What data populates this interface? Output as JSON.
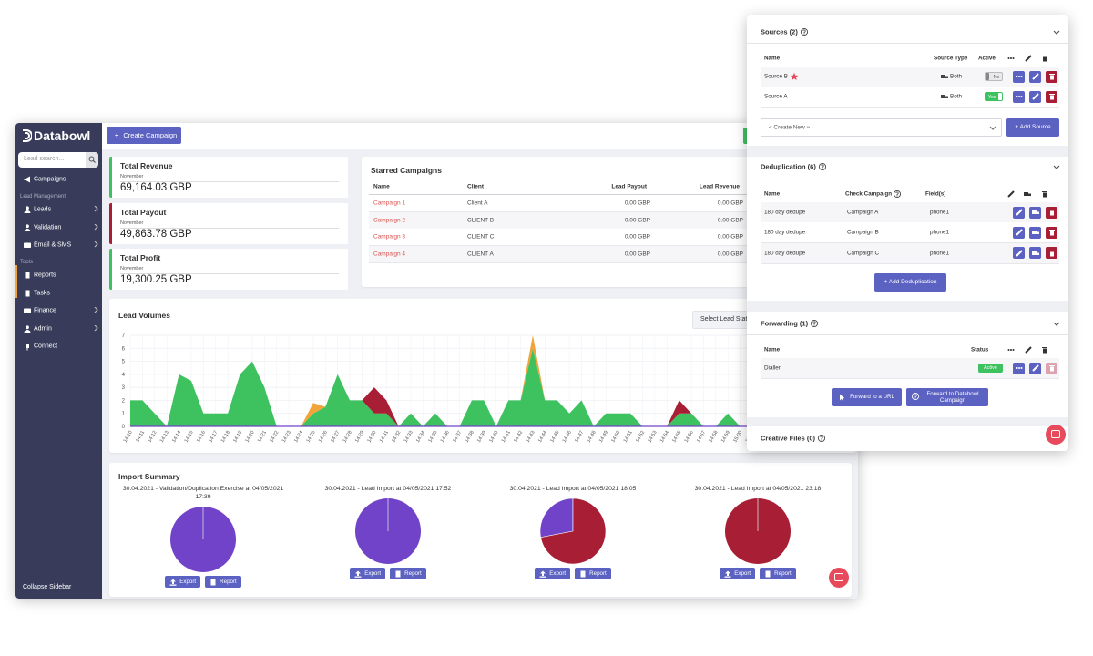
{
  "sidebar": {
    "logo": "Databowl",
    "search_placeholder": "Lead search...",
    "top_item": "Campaigns",
    "groups": [
      {
        "heading": "Lead Management",
        "items": [
          "Leads",
          "Validation",
          "Email & SMS"
        ]
      },
      {
        "heading": "Tools",
        "items": [
          "Reports",
          "Tasks",
          "Finance",
          "Admin",
          "Connect"
        ]
      }
    ],
    "collapse": "Collapse Sidebar"
  },
  "topbar": {
    "create_button": "Create Campaign"
  },
  "cards": [
    {
      "title": "Total Revenue",
      "period": "November",
      "value": "69,164.03 GBP"
    },
    {
      "title": "Total Payout",
      "period": "November",
      "value": "49,863.78 GBP"
    },
    {
      "title": "Total Profit",
      "period": "November",
      "value": "19,300.25 GBP"
    }
  ],
  "starred_campaigns": {
    "title": "Starred Campaigns",
    "headers": [
      "Name",
      "Client",
      "Lead Payout",
      "Lead Revenue"
    ],
    "rows": [
      [
        "Campaign 1",
        "Client A",
        "0.00 GBP",
        "0.00 GBP"
      ],
      [
        "Campaign 2",
        "CLIENT B",
        "0.00 GBP",
        "0.00 GBP"
      ],
      [
        "Campaign 3",
        "CLIENT C",
        "0.00 GBP",
        "0.00 GBP"
      ],
      [
        "Campaign 4",
        "CLIENT A",
        "0.00 GBP",
        "0.00 GBP"
      ]
    ]
  },
  "lead_volumes_filter": "Select Lead Status",
  "import_summary": {
    "title": "Import Summary",
    "buttons": [
      "Export",
      "Report"
    ]
  },
  "chart_data": [
    {
      "type": "area",
      "title": "Lead Volumes",
      "categories": [
        "14:10",
        "14:11",
        "14:12",
        "14:13",
        "14:14",
        "14:15",
        "14:16",
        "14:17",
        "14:18",
        "14:19",
        "14:20",
        "14:21",
        "14:22",
        "14:23",
        "14:24",
        "14:25",
        "14:26",
        "14:27",
        "14:28",
        "14:29",
        "14:30",
        "14:31",
        "14:32",
        "14:33",
        "14:34",
        "14:35",
        "14:36",
        "14:37",
        "14:38",
        "14:39",
        "14:40",
        "14:41",
        "14:42",
        "14:43",
        "14:44",
        "14:45",
        "14:46",
        "14:47",
        "14:48",
        "14:49",
        "14:50",
        "14:51",
        "14:52",
        "14:53",
        "14:54",
        "14:55",
        "14:56",
        "14:57",
        "14:58",
        "14:59",
        "15:00",
        "15:01"
      ],
      "series": [
        {
          "color": "#3ec15f",
          "values": [
            2,
            2,
            1,
            0,
            4,
            3.5,
            1,
            1,
            1,
            4,
            5,
            3,
            0,
            0,
            0,
            1,
            1.5,
            4,
            2,
            2,
            1,
            1,
            0,
            1,
            0,
            1,
            0,
            0,
            2,
            2,
            0,
            2,
            2,
            6,
            2,
            2,
            1,
            2,
            0,
            1,
            1,
            1,
            0,
            0,
            0,
            1,
            1,
            0,
            0,
            1,
            0,
            0
          ]
        },
        {
          "color": "#f2a33a",
          "values": [
            0,
            0,
            0,
            0,
            0,
            0,
            0,
            0,
            0,
            0,
            0,
            0,
            0,
            0,
            0,
            0.8,
            0,
            0,
            0,
            0,
            0,
            0,
            0,
            0,
            0,
            0,
            0,
            0,
            0,
            0,
            0,
            0,
            0,
            1,
            0,
            0,
            0,
            0,
            0,
            0,
            0,
            0,
            0,
            0,
            0,
            0,
            0,
            0,
            0,
            0,
            0,
            0
          ]
        },
        {
          "color": "#a81e35",
          "values": [
            0,
            0,
            0,
            0,
            0,
            0,
            0,
            0,
            0,
            0,
            0,
            0,
            0,
            0,
            0,
            0,
            0,
            0,
            0,
            0,
            2,
            1,
            0,
            0,
            0,
            0,
            0,
            0,
            0,
            0,
            0,
            0,
            0,
            0,
            0,
            0,
            0,
            0,
            0,
            0,
            0,
            0,
            0,
            0,
            0,
            1,
            0,
            0,
            0,
            0,
            0,
            0
          ]
        }
      ],
      "stacked": true,
      "ylim": [
        0,
        7
      ],
      "yticks": [
        0,
        1,
        2,
        3,
        4,
        5,
        6,
        7
      ],
      "grid": true
    },
    {
      "type": "pie",
      "title": "30.04.2021 - Validation/Duplication Exercise at 04/05/2021 17:39",
      "values": [
        100,
        0
      ],
      "colors": [
        "#7043c9",
        "#a81e35"
      ]
    },
    {
      "type": "pie",
      "title": "30.04.2021 - Lead Import at 04/05/2021 17:52",
      "values": [
        100,
        0
      ],
      "colors": [
        "#7043c9",
        "#a81e35"
      ]
    },
    {
      "type": "pie",
      "title": "30.04.2021 - Lead Import at 04/05/2021 18:05",
      "values": [
        28,
        72
      ],
      "colors": [
        "#7043c9",
        "#a81e35"
      ]
    },
    {
      "type": "pie",
      "title": "30.04.2021 - Lead Import at 04/05/2021 23:18",
      "values": [
        0,
        100
      ],
      "colors": [
        "#7043c9",
        "#a81e35"
      ]
    }
  ],
  "right_panel": {
    "sources": {
      "title": "Sources (2)",
      "headers": [
        "Name",
        "Source Type",
        "Active"
      ],
      "rows": [
        {
          "name": "Source B",
          "type": "Both",
          "active": "No"
        },
        {
          "name": "Source A",
          "type": "Both",
          "active": "Yes"
        }
      ],
      "select": "« Create New »",
      "button": "+ Add Source"
    },
    "deduplication": {
      "title": "Deduplication (6)",
      "headers": [
        "Name",
        "Check Campaign",
        "Field(s)"
      ],
      "rows": [
        [
          "180 day dedupe",
          "Campaign A",
          "phone1"
        ],
        [
          "180 day dedupe",
          "Campaign B",
          "phone1"
        ],
        [
          "180 day dedupe",
          "Campaign C",
          "phone1"
        ]
      ],
      "button": "+ Add Deduplication"
    },
    "forwarding": {
      "title": "Forwarding (1)",
      "headers": [
        "Name",
        "Status"
      ],
      "rows": [
        [
          "Dialler",
          "Active"
        ]
      ],
      "buttons": [
        "Forward to a URL",
        "Forward to Databowl Campaign"
      ]
    },
    "creative_files": {
      "title": "Creative Files (0)"
    }
  }
}
